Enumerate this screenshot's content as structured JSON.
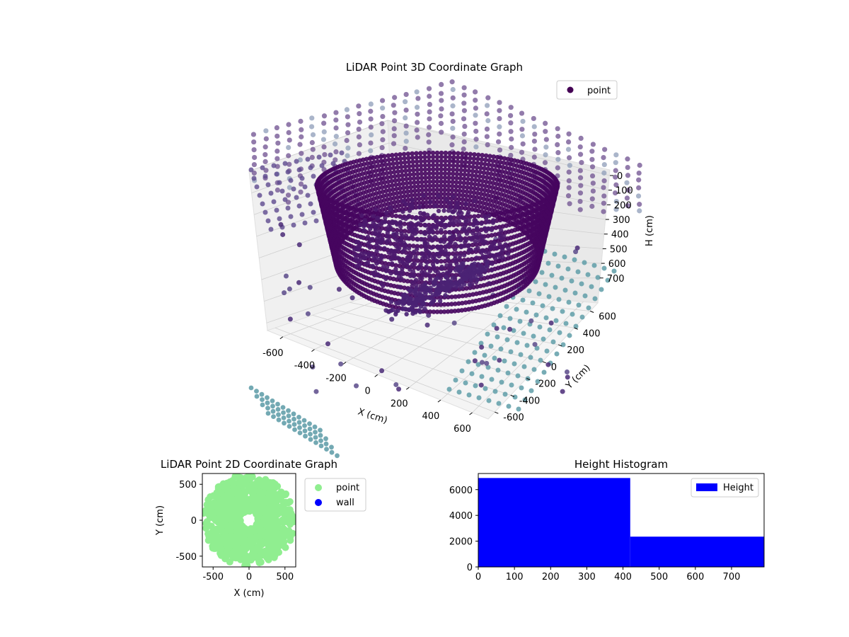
{
  "chart_data": [
    {
      "type": "scatter3d",
      "title": "LiDAR Point 3D Coordinate Graph",
      "xlabel": "X (cm)",
      "ylabel": "Y (cm)",
      "zlabel": "H (cm)",
      "xticks": [
        "-600",
        "-400",
        "-200",
        "0",
        "200",
        "400",
        "600"
      ],
      "yticks": [
        "-600",
        "-400",
        "-200",
        "0",
        "200",
        "400",
        "600"
      ],
      "zticks": [
        "0",
        "100",
        "200",
        "300",
        "400",
        "500",
        "600",
        "700"
      ],
      "xlim": [
        -650,
        650
      ],
      "ylim": [
        -650,
        650
      ],
      "zlim": [
        0,
        750
      ],
      "zinverted": true,
      "colormap": "viridis",
      "legend": {
        "label": "point",
        "placement": "top-right",
        "color": "#440154"
      },
      "description_series": [
        {
          "shape": "ring",
          "center": [
            0,
            0
          ],
          "radius": 300,
          "height_range": [
            100,
            400
          ],
          "color": "#440154"
        },
        {
          "shape": "wall-columns",
          "radius": 650,
          "height_range": [
            0,
            700
          ],
          "color": "#5b4a8a"
        }
      ]
    },
    {
      "type": "scatter",
      "title": "LiDAR Point 2D Coordinate Graph",
      "xlabel": "X (cm)",
      "ylabel": "Y (cm)",
      "xticks": [
        "-500",
        "0",
        "500"
      ],
      "yticks": [
        "-500",
        "0",
        "500"
      ],
      "xlim": [
        -650,
        650
      ],
      "ylim": [
        -650,
        650
      ],
      "series": [
        {
          "name": "point",
          "color": "#90ee90"
        },
        {
          "name": "wall",
          "color": "#0000ff"
        }
      ],
      "legend": {
        "placement": "outside-right"
      }
    },
    {
      "type": "bar",
      "title": "Height Histogram",
      "bins": [
        {
          "from": 0,
          "to": 420,
          "count": 6900
        },
        {
          "from": 420,
          "to": 790,
          "count": 2350
        }
      ],
      "xticks": [
        "0",
        "100",
        "200",
        "300",
        "400",
        "500",
        "600",
        "700"
      ],
      "yticks": [
        "0",
        "2000",
        "4000",
        "6000"
      ],
      "xlim": [
        0,
        790
      ],
      "ylim": [
        0,
        7250
      ],
      "color": "#0000ff",
      "legend": {
        "label": "Height",
        "placement": "top-right"
      }
    }
  ]
}
